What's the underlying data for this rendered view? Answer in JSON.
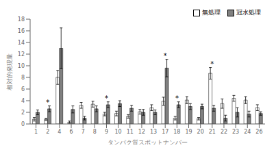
{
  "chart_data": {
    "type": "bar",
    "categories": [
      "1",
      "2",
      "4",
      "6",
      "7",
      "8",
      "9",
      "10",
      "11",
      "12",
      "13",
      "17",
      "18",
      "19",
      "20",
      "21",
      "22",
      "23",
      "24",
      "26"
    ],
    "series": [
      {
        "name": "無処理",
        "color": "#ffffff",
        "values": [
          0.8,
          0.8,
          8.0,
          0.3,
          3.2,
          3.4,
          1.7,
          1.8,
          1.3,
          2.1,
          2.8,
          3.9,
          1.0,
          4.1,
          0.9,
          8.7,
          3.5,
          4.4,
          4.1,
          2.8
        ],
        "errors": [
          0.3,
          0.2,
          1.2,
          0.2,
          0.5,
          0.5,
          0.3,
          0.4,
          0.3,
          0.4,
          0.5,
          0.7,
          0.3,
          0.6,
          0.2,
          1.0,
          0.8,
          0.5,
          0.6,
          0.5
        ]
      },
      {
        "name": "冠水処理",
        "color": "#808080",
        "values": [
          2.0,
          2.6,
          13.0,
          2.5,
          1.0,
          2.6,
          3.3,
          3.5,
          2.7,
          2.0,
          2.0,
          9.6,
          3.3,
          3.0,
          3.0,
          2.7,
          1.0,
          2.0,
          1.7,
          1.8
        ],
        "errors": [
          0.4,
          0.5,
          3.5,
          0.6,
          0.3,
          0.5,
          0.5,
          0.5,
          0.5,
          0.5,
          0.4,
          1.5,
          0.5,
          0.5,
          0.4,
          0.5,
          0.5,
          0.8,
          0.5,
          0.3
        ]
      }
    ],
    "xlabel": "タンパク質スポットナンバー",
    "ylabel": "相対的発現量",
    "ylim": [
      0,
      18
    ],
    "yticks": [
      0,
      2,
      4,
      6,
      8,
      10,
      12,
      14,
      16,
      18
    ],
    "legend": "upper right",
    "grid": false,
    "annotations": [
      {
        "category": "2",
        "text": "*"
      },
      {
        "category": "9",
        "text": "*"
      },
      {
        "category": "17",
        "text": "*"
      },
      {
        "category": "18",
        "text": "*"
      },
      {
        "category": "21",
        "text": "*"
      }
    ]
  }
}
